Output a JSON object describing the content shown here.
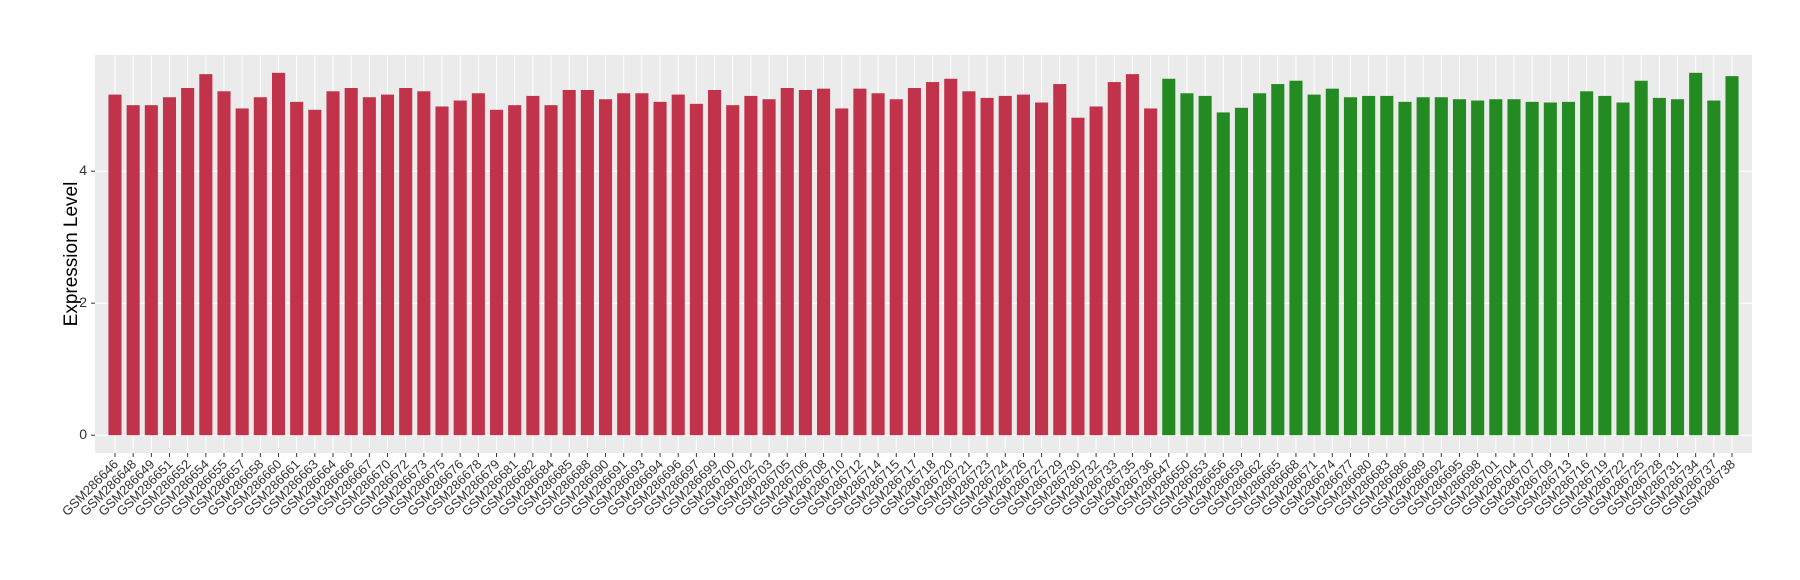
{
  "chart_data": {
    "type": "bar",
    "y_label": "Expression Level",
    "categories": [
      "GSM286646",
      "GSM286648",
      "GSM286649",
      "GSM286651",
      "GSM286652",
      "GSM286654",
      "GSM286655",
      "GSM286657",
      "GSM286658",
      "GSM286660",
      "GSM286661",
      "GSM286663",
      "GSM286664",
      "GSM286666",
      "GSM286667",
      "GSM286670",
      "GSM286672",
      "GSM286673",
      "GSM286675",
      "GSM286676",
      "GSM286678",
      "GSM286679",
      "GSM286681",
      "GSM286682",
      "GSM286684",
      "GSM286685",
      "GSM286688",
      "GSM286690",
      "GSM286691",
      "GSM286693",
      "GSM286694",
      "GSM286696",
      "GSM286697",
      "GSM286699",
      "GSM286700",
      "GSM286702",
      "GSM286703",
      "GSM286705",
      "GSM286706",
      "GSM286708",
      "GSM286710",
      "GSM286712",
      "GSM286714",
      "GSM286715",
      "GSM286717",
      "GSM286718",
      "GSM286720",
      "GSM286721",
      "GSM286723",
      "GSM286724",
      "GSM286726",
      "GSM286727",
      "GSM286729",
      "GSM286730",
      "GSM286732",
      "GSM286733",
      "GSM286735",
      "GSM286736",
      "GSM286647",
      "GSM286650",
      "GSM286653",
      "GSM286656",
      "GSM286659",
      "GSM286662",
      "GSM286665",
      "GSM286668",
      "GSM286671",
      "GSM286674",
      "GSM286677",
      "GSM286680",
      "GSM286683",
      "GSM286686",
      "GSM286689",
      "GSM286692",
      "GSM286695",
      "GSM286698",
      "GSM286701",
      "GSM286704",
      "GSM286707",
      "GSM286709",
      "GSM286713",
      "GSM286716",
      "GSM286719",
      "GSM286722",
      "GSM286725",
      "GSM286728",
      "GSM286731",
      "GSM286734",
      "GSM286737",
      "GSM286738"
    ],
    "values": [
      5.16,
      5.0,
      5.0,
      5.12,
      5.26,
      5.47,
      5.21,
      4.95,
      5.12,
      5.49,
      5.05,
      4.93,
      5.21,
      5.26,
      5.12,
      5.16,
      5.26,
      5.21,
      4.98,
      5.07,
      5.18,
      4.93,
      5.0,
      5.14,
      5.0,
      5.23,
      5.23,
      5.09,
      5.18,
      5.18,
      5.05,
      5.16,
      5.02,
      5.23,
      5.0,
      5.14,
      5.09,
      5.26,
      5.23,
      5.25,
      4.95,
      5.25,
      5.18,
      5.09,
      5.26,
      5.35,
      5.4,
      5.21,
      5.11,
      5.14,
      5.16,
      5.04,
      5.32,
      4.81,
      4.98,
      5.35,
      5.47,
      4.95,
      5.4,
      5.18,
      5.14,
      4.89,
      4.96,
      5.18,
      5.32,
      5.37,
      5.16,
      5.25,
      5.12,
      5.14,
      5.14,
      5.05,
      5.12,
      5.12,
      5.09,
      5.07,
      5.09,
      5.09,
      5.05,
      5.04,
      5.05,
      5.21,
      5.14,
      5.04,
      5.37,
      5.11,
      5.09,
      5.49,
      5.07,
      5.44
    ],
    "colors": [
      "#c0334a",
      "#c0334a",
      "#c0334a",
      "#c0334a",
      "#c0334a",
      "#c0334a",
      "#c0334a",
      "#c0334a",
      "#c0334a",
      "#c0334a",
      "#c0334a",
      "#c0334a",
      "#c0334a",
      "#c0334a",
      "#c0334a",
      "#c0334a",
      "#c0334a",
      "#c0334a",
      "#c0334a",
      "#c0334a",
      "#c0334a",
      "#c0334a",
      "#c0334a",
      "#c0334a",
      "#c0334a",
      "#c0334a",
      "#c0334a",
      "#c0334a",
      "#c0334a",
      "#c0334a",
      "#c0334a",
      "#c0334a",
      "#c0334a",
      "#c0334a",
      "#c0334a",
      "#c0334a",
      "#c0334a",
      "#c0334a",
      "#c0334a",
      "#c0334a",
      "#c0334a",
      "#c0334a",
      "#c0334a",
      "#c0334a",
      "#c0334a",
      "#c0334a",
      "#c0334a",
      "#c0334a",
      "#c0334a",
      "#c0334a",
      "#c0334a",
      "#c0334a",
      "#c0334a",
      "#c0334a",
      "#c0334a",
      "#c0334a",
      "#c0334a",
      "#c0334a",
      "#238b22",
      "#238b22",
      "#238b22",
      "#238b22",
      "#238b22",
      "#238b22",
      "#238b22",
      "#238b22",
      "#238b22",
      "#238b22",
      "#238b22",
      "#238b22",
      "#238b22",
      "#238b22",
      "#238b22",
      "#238b22",
      "#238b22",
      "#238b22",
      "#238b22",
      "#238b22",
      "#238b22",
      "#238b22",
      "#238b22",
      "#238b22",
      "#238b22",
      "#238b22",
      "#238b22",
      "#238b22",
      "#238b22",
      "#238b22",
      "#238b22",
      "#238b22"
    ],
    "ylim": [
      -0.27,
      5.76
    ],
    "yticks": [
      0,
      2,
      4
    ],
    "grid": true
  }
}
